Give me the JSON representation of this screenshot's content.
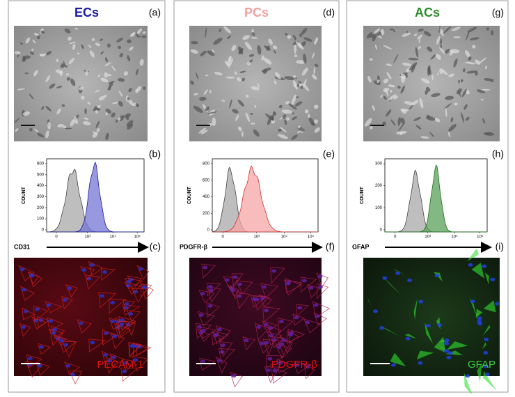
{
  "panels": [
    {
      "title": "ECs",
      "image_label": "(a)",
      "histogram_label": "(b)",
      "stain_label": "(c)",
      "histogram": {
        "y_axis_label": "COUNT",
        "x_axis_label": "CD31",
        "yticks": [
          "0",
          "100",
          "200",
          "300",
          "400",
          "500",
          "600"
        ],
        "xticks": [
          "0",
          "10³",
          "10⁴",
          "10⁵"
        ]
      },
      "stain": "PECAM-1"
    },
    {
      "title": "PCs",
      "image_label": "(d)",
      "histogram_label": "(e)",
      "stain_label": "(f)",
      "histogram": {
        "y_axis_label": "COUNT",
        "x_axis_label": "PDGFR-β",
        "yticks": [
          "0",
          "200",
          "400",
          "600",
          "800"
        ],
        "xticks": [
          "0",
          "10³",
          "10⁴",
          "10⁵"
        ]
      },
      "stain": "PDGFR-β"
    },
    {
      "title": "ACs",
      "image_label": "(g)",
      "histogram_label": "(h)",
      "stain_label": "(i)",
      "histogram": {
        "y_axis_label": "COUNT",
        "x_axis_label": "GFAP",
        "yticks": [
          "0",
          "100",
          "200",
          "300"
        ],
        "xticks": [
          "0",
          "10³",
          "10⁴",
          "10⁵"
        ]
      },
      "stain": "GFAP"
    }
  ]
}
